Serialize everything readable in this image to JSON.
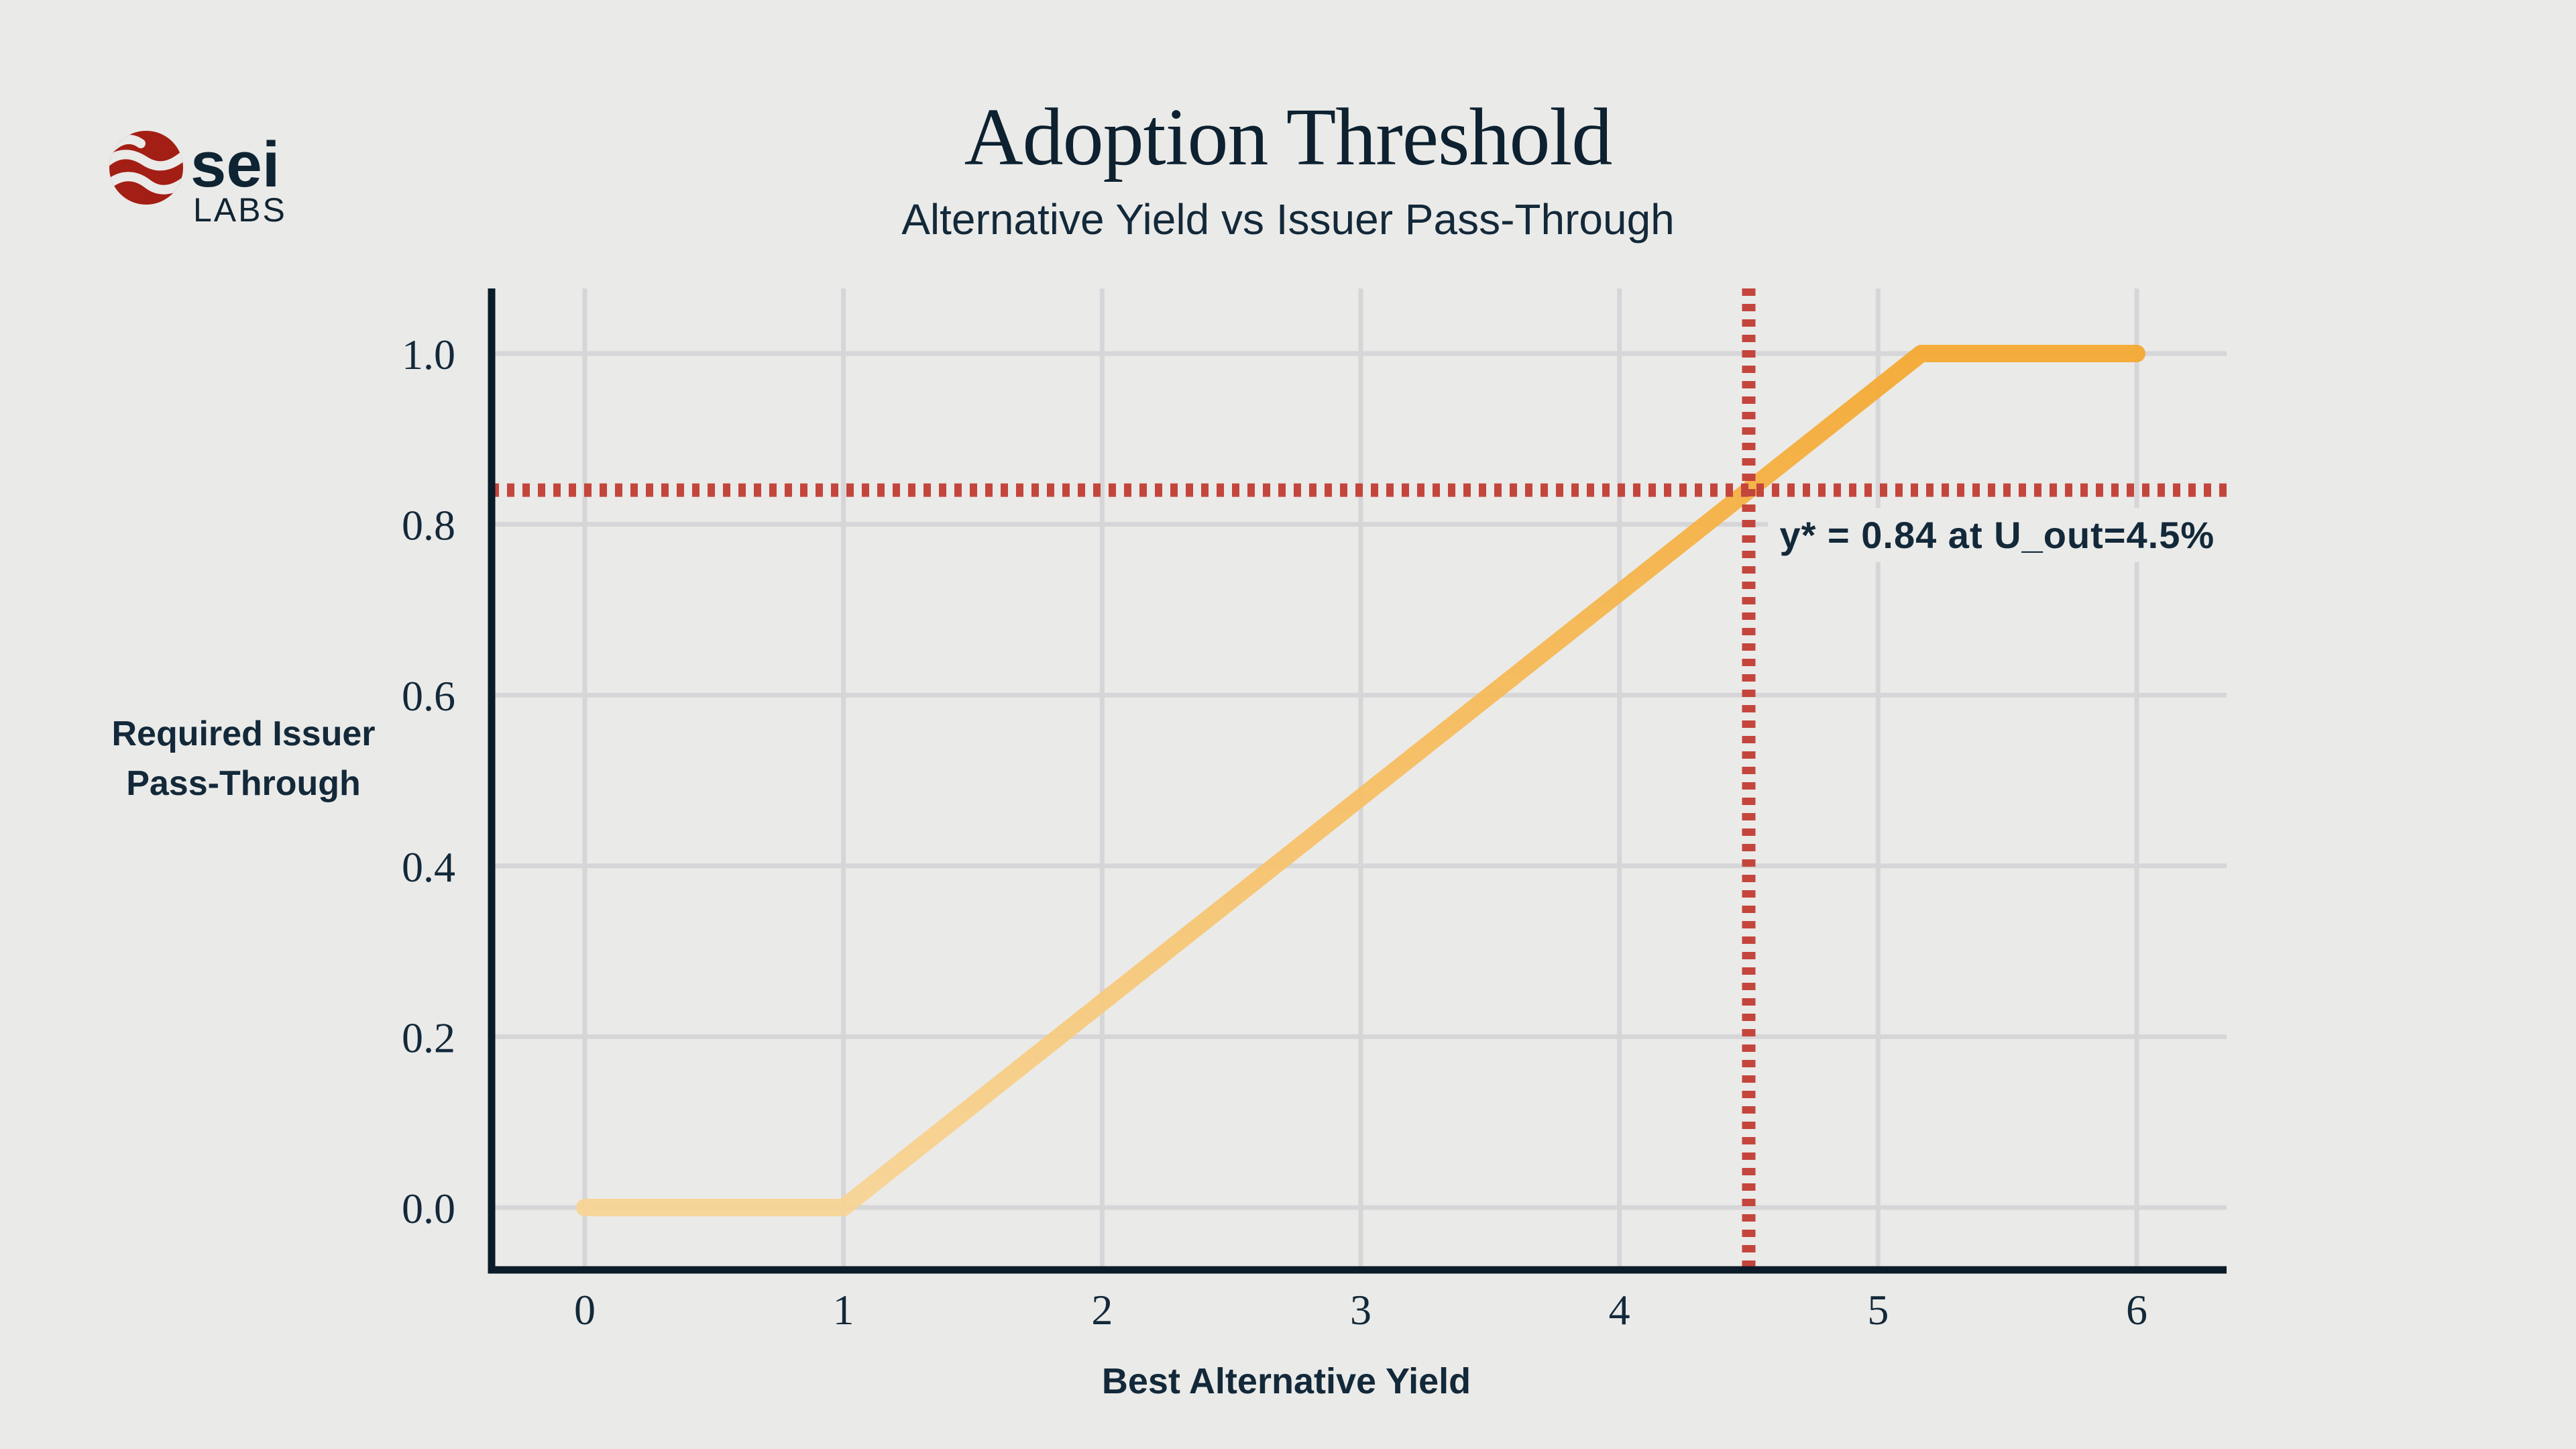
{
  "page": {
    "background": "#EAEAE8"
  },
  "logo": {
    "brand": "sei",
    "sub": "LABS",
    "circle_color": "#A31E14",
    "wave_color": "#EAEAE8",
    "text_color": "#0F2433"
  },
  "header": {
    "title": "Adoption Threshold",
    "subtitle": "Alternative Yield vs Issuer Pass-Through"
  },
  "chart_data": {
    "type": "line",
    "title": "Adoption Threshold",
    "subtitle": "Alternative Yield vs Issuer Pass-Through",
    "xlabel": "Best Alternative Yield",
    "ylabel_lines": [
      "Required Issuer",
      "Pass-Through"
    ],
    "xticks": [
      "0",
      "1",
      "2",
      "3",
      "4",
      "5",
      "6"
    ],
    "ytick_values": [
      0.0,
      0.2,
      0.4,
      0.6,
      0.8,
      1.0
    ],
    "ytick_labels": [
      "0.0",
      "0.2",
      "0.4",
      "0.6",
      "0.8",
      "1.0"
    ],
    "xlim": [
      0,
      6
    ],
    "ylim": [
      0,
      1
    ],
    "grid": true,
    "legend": "none",
    "series": [
      {
        "name": "required-issuer-pass-through",
        "x": [
          0,
          1,
          5.1667,
          6
        ],
        "y": [
          0,
          0,
          1.0,
          1.0
        ]
      }
    ],
    "threshold": {
      "x": 4.5,
      "y": 0.84,
      "annotation": "y* = 0.84 at U_out=4.5%"
    },
    "colors": {
      "line_gradient_bottom": "#F8D494",
      "line_gradient_top": "#F5A82F",
      "threshold": "#C4453C",
      "grid": "#D6D6D9",
      "axis": "#0A1B29",
      "tick_text": "#13293A"
    }
  }
}
